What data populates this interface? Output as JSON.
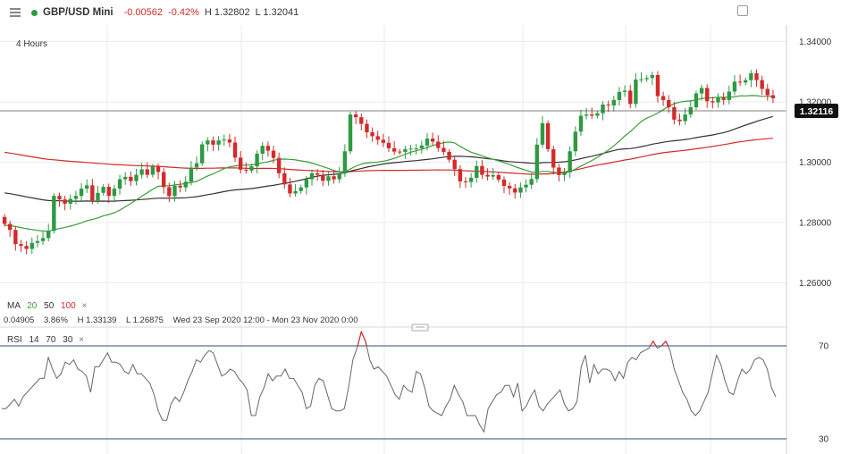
{
  "header": {
    "symbol": "GBP/USD Mini",
    "change": "-0.00562",
    "change_pct": "-0.42%",
    "high": "H 1.32802",
    "low": "L 1.32041"
  },
  "timeframe": "4 Hours",
  "indicators": {
    "ma": {
      "label": "MA",
      "p1": "20",
      "p2": "50",
      "p3": "100",
      "close": "×",
      "colors": {
        "p1": "#3a9d3a",
        "p2": "#333333",
        "p3": "#d32a2a"
      }
    },
    "info": {
      "change": "0.04905",
      "pct": "3.86%",
      "high": "H 1.33139",
      "low": "L 1.26875",
      "range": "Wed 23 Sep 2020 12:00 - Mon 23 Nov 2020 0:00"
    },
    "rsi": {
      "label": "RSI",
      "p1": "14",
      "p2": "70",
      "p3": "30",
      "close": "×"
    }
  },
  "chart_data": [
    {
      "type": "candlestick",
      "title": "",
      "xlabel": "",
      "ylabel": "",
      "ylim": [
        1.2506,
        1.3443
      ],
      "yticks": [
        "1.34000",
        "1.32000",
        "1.30000",
        "1.28000",
        "1.26000"
      ],
      "ytick_values": [
        1.34,
        1.32,
        1.3,
        1.28,
        1.26
      ],
      "current_price": "1.32116",
      "current_value": 1.32116,
      "up_color": "#2e9a43",
      "down_color": "#d32a2a",
      "close": [
        1.2795,
        1.2775,
        1.2728,
        1.2722,
        1.2712,
        1.2732,
        1.2738,
        1.2748,
        1.2772,
        1.2888,
        1.2876,
        1.2862,
        1.2878,
        1.2888,
        1.2912,
        1.2923,
        1.2873,
        1.2898,
        1.2918,
        1.2888,
        1.2912,
        1.2943,
        1.2951,
        1.2937,
        1.2958,
        1.2976,
        1.2958,
        1.2985,
        1.2967,
        1.2917,
        1.2887,
        1.2922,
        1.2916,
        1.2935,
        1.2982,
        1.2996,
        1.3059,
        1.3072,
        1.3058,
        1.3072,
        1.3075,
        1.3065,
        1.3015,
        1.2975,
        1.2972,
        1.2986,
        1.3028,
        1.3054,
        1.3038,
        1.3014,
        1.2963,
        1.2926,
        1.2896,
        1.2904,
        1.2916,
        1.2943,
        1.2963,
        1.2958,
        1.2938,
        1.2953,
        1.2943,
        1.2962,
        1.3036,
        1.3158,
        1.3149,
        1.3127,
        1.3099,
        1.3086,
        1.3074,
        1.3064,
        1.3046,
        1.3035,
        1.3034,
        1.3043,
        1.3045,
        1.3046,
        1.3055,
        1.3078,
        1.3068,
        1.3047,
        1.3034,
        1.3008,
        1.2977,
        1.2936,
        1.2934,
        1.2948,
        1.2987,
        1.2958,
        1.2952,
        1.2957,
        1.2942,
        1.2921,
        1.2913,
        1.2899,
        1.2916,
        1.2925,
        1.2944,
        1.3058,
        1.3129,
        1.3043,
        1.2982,
        1.2957,
        1.2966,
        1.3036,
        1.3101,
        1.3154,
        1.3158,
        1.3154,
        1.3162,
        1.3191,
        1.3188,
        1.3206,
        1.3233,
        1.3237,
        1.3193,
        1.3274,
        1.3275,
        1.3279,
        1.3289,
        1.3219,
        1.3206,
        1.3182,
        1.3141,
        1.3136,
        1.3158,
        1.3182,
        1.3228,
        1.3246,
        1.3202,
        1.3198,
        1.3213,
        1.3206,
        1.3234,
        1.3267,
        1.3264,
        1.3272,
        1.3295,
        1.3272,
        1.3243,
        1.3222,
        1.3212
      ]
    },
    {
      "type": "line",
      "title": "",
      "xlabel": "",
      "ylabel": "",
      "ylim": [
        25,
        75
      ],
      "yticks": [
        "70",
        "30"
      ],
      "ytick_values": [
        70,
        30
      ],
      "series": [
        {
          "name": "",
          "color": "#666666",
          "values": [
            43,
            43,
            45,
            47,
            44,
            48,
            50,
            52,
            54,
            56,
            56,
            65,
            60,
            56,
            58,
            63,
            62,
            64,
            60,
            59,
            57,
            50,
            61,
            61,
            64,
            67,
            63,
            63,
            62,
            59,
            58,
            62,
            58,
            58,
            56,
            54,
            49,
            42,
            38,
            38,
            45,
            48,
            46,
            50,
            55,
            59,
            64,
            63,
            66,
            68,
            67,
            62,
            57,
            58,
            60,
            59,
            56,
            54,
            51,
            40,
            40,
            48,
            52,
            58,
            55,
            57,
            57,
            60,
            56,
            56,
            53,
            50,
            43,
            44,
            53,
            56,
            55,
            49,
            43,
            42,
            42,
            43,
            52,
            64,
            69,
            76,
            72,
            64,
            60,
            61,
            59,
            57,
            53,
            49,
            47,
            53,
            51,
            50,
            59,
            58,
            52,
            44,
            42,
            41,
            40,
            44,
            47,
            53,
            49,
            46,
            40,
            40,
            40,
            36,
            33,
            43,
            46,
            49,
            50,
            53,
            53,
            48,
            54,
            42,
            44,
            48,
            51,
            44,
            42,
            45,
            47,
            49,
            51,
            45,
            42,
            43,
            46,
            61,
            66,
            54,
            62,
            58,
            60,
            60,
            59,
            55,
            59,
            56,
            63,
            65,
            64,
            67,
            68,
            69,
            72,
            69,
            70,
            72,
            68,
            60,
            55,
            50,
            47,
            42,
            40,
            42,
            46,
            50,
            58,
            66,
            62,
            55,
            50,
            49,
            55,
            60,
            58,
            60,
            64,
            65,
            64,
            60,
            52,
            48
          ]
        }
      ]
    }
  ]
}
